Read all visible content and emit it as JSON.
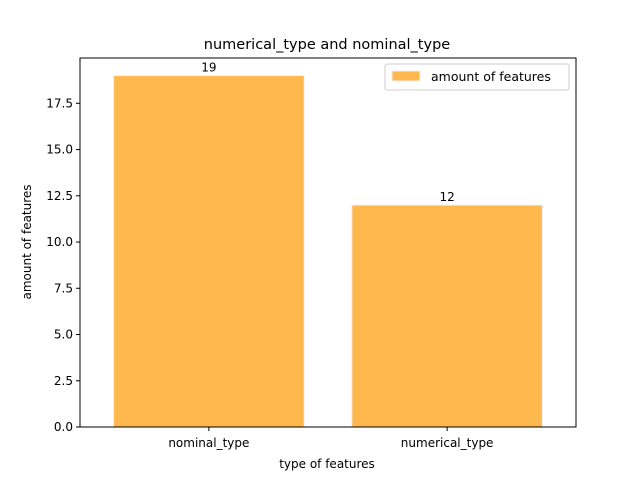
{
  "chart_data": {
    "type": "bar",
    "title": "numerical_type and nominal_type",
    "xlabel": "type of features",
    "ylabel": "amount of features",
    "categories": [
      "nominal_type",
      "numerical_type"
    ],
    "series": [
      {
        "name": "amount of features",
        "values": [
          19,
          12
        ]
      }
    ],
    "data_labels": [
      "19",
      "12"
    ],
    "ylim": [
      0,
      19.95
    ],
    "yticks": [
      0.0,
      2.5,
      5.0,
      7.5,
      10.0,
      12.5,
      15.0,
      17.5
    ],
    "ytick_labels": [
      "0.0",
      "2.5",
      "5.0",
      "7.5",
      "10.0",
      "12.5",
      "15.0",
      "17.5"
    ],
    "grid": false,
    "legend_position": "top-right",
    "bar_color": "#FFB84D",
    "bar_edge_color": "#F2F2F2"
  }
}
